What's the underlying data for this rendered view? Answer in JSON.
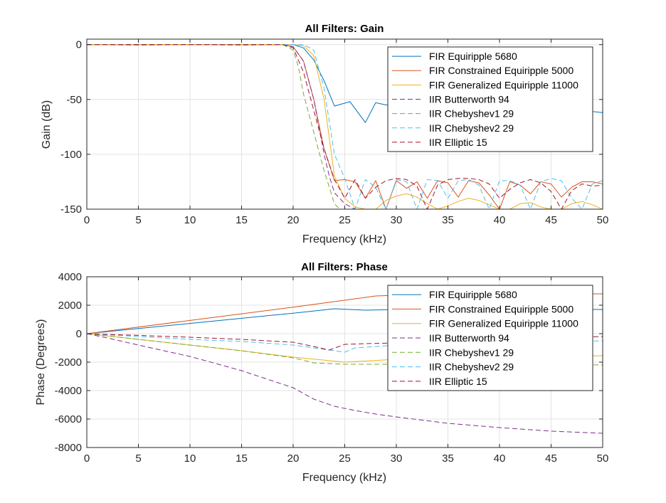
{
  "figure": {
    "background": "#ffffff",
    "axes_color": "#262626",
    "grid_color": "#e3e3e3"
  },
  "chart_data": [
    {
      "type": "line",
      "title": "All Filters: Gain",
      "xlabel": "Frequency (kHz)",
      "ylabel": "Gain (dB)",
      "xlim": [
        0,
        50
      ],
      "ylim": [
        -150,
        5
      ],
      "xticks": [
        0,
        5,
        10,
        15,
        20,
        25,
        30,
        35,
        40,
        45,
        50
      ],
      "yticks": [
        0,
        -50,
        -100,
        -150
      ],
      "grid": true,
      "legend_position": "top-right",
      "series": [
        {
          "name": "FIR Equiripple 5680",
          "color": "#0072BD",
          "dash": "solid",
          "x": [
            0,
            5,
            10,
            15,
            18,
            20,
            21,
            22,
            23,
            24,
            25.5,
            27,
            28,
            29,
            30,
            31,
            32,
            33,
            34,
            35,
            36,
            37,
            38,
            39,
            40,
            41,
            42,
            43,
            44,
            45,
            46,
            47,
            48,
            49,
            50
          ],
          "y": [
            0,
            0,
            0,
            0,
            0,
            0,
            -3,
            -14,
            -33,
            -56,
            -52,
            -71,
            -53,
            -55,
            -56,
            -57,
            -58,
            -60,
            -63,
            -55,
            -58,
            -60,
            -56,
            -59,
            -61,
            -57,
            -60,
            -58,
            -62,
            -59,
            -56,
            -58,
            -60,
            -61,
            -62
          ]
        },
        {
          "name": "FIR Constrained Equiripple 5000",
          "color": "#D95319",
          "dash": "solid",
          "x": [
            0,
            5,
            10,
            15,
            19,
            20,
            21,
            22,
            23,
            24,
            25,
            26,
            27,
            28,
            29,
            30,
            31,
            32,
            33,
            34,
            35,
            36,
            37,
            38,
            39,
            40,
            41,
            42,
            43,
            44,
            45,
            46,
            47,
            48,
            49,
            50
          ],
          "y": [
            0,
            0,
            0,
            0,
            0,
            -2,
            -15,
            -50,
            -95,
            -124,
            -123,
            -125,
            -140,
            -124,
            -150,
            -124,
            -131,
            -125,
            -140,
            -124,
            -126,
            -139,
            -124,
            -126,
            -137,
            -150,
            -125,
            -128,
            -136,
            -125,
            -127,
            -139,
            -130,
            -125,
            -125,
            -127
          ]
        },
        {
          "name": "FIR Generalized Equiripple 11000",
          "color": "#EDB120",
          "dash": "solid",
          "x": [
            0,
            5,
            10,
            15,
            20,
            21,
            22,
            23,
            24,
            25,
            26,
            27,
            28,
            29,
            30,
            31,
            32,
            33,
            34,
            35,
            36,
            37,
            38,
            39,
            40,
            41,
            42,
            43,
            44,
            45,
            46,
            47,
            48,
            49,
            50
          ],
          "y": [
            0,
            0,
            0,
            0,
            0,
            -1,
            -10,
            -50,
            -120,
            -140,
            -148,
            -150,
            -150,
            -142,
            -138,
            -136,
            -139,
            -145,
            -150,
            -147,
            -143,
            -140,
            -142,
            -146,
            -150,
            -150,
            -145,
            -144,
            -148,
            -150,
            -150,
            -145,
            -143,
            -146,
            -150
          ]
        },
        {
          "name": "IIR Butterworth 94",
          "color": "#7E2F8E",
          "dash": "dash",
          "x": [
            0,
            5,
            10,
            15,
            19,
            20,
            21,
            22,
            23,
            23.5,
            24,
            25,
            26
          ],
          "y": [
            0,
            0,
            0,
            0,
            0,
            -2,
            -15,
            -50,
            -100,
            -120,
            -135,
            -145,
            -150
          ]
        },
        {
          "name": "IIR Chebyshev1 29",
          "color": "#77AC30",
          "dash": "dash",
          "x": [
            0,
            5,
            10,
            15,
            19,
            20,
            20.5,
            21,
            22,
            23,
            23.5,
            24,
            24.5
          ],
          "y": [
            0,
            -0.5,
            0,
            -0.5,
            0,
            -5,
            -20,
            -45,
            -80,
            -115,
            -130,
            -145,
            -150
          ]
        },
        {
          "name": "IIR Chebyshev2 29",
          "color": "#4DBEEE",
          "dash": "dash",
          "x": [
            0,
            5,
            10,
            15,
            20,
            21,
            22,
            23,
            24,
            25,
            26,
            27,
            28,
            29,
            30,
            31,
            32,
            33,
            34,
            35,
            36,
            37,
            38,
            39,
            40,
            41,
            42,
            43,
            44,
            45,
            46,
            47,
            48,
            49,
            50
          ],
          "y": [
            0,
            0,
            0,
            0,
            0,
            0,
            -5,
            -40,
            -100,
            -122,
            -150,
            -123,
            -130,
            -150,
            -123,
            -125,
            -150,
            -123,
            -124,
            -140,
            -124,
            -123,
            -128,
            -150,
            -124,
            -124,
            -128,
            -150,
            -125,
            -122,
            -124,
            -140,
            -150,
            -127,
            -124
          ]
        },
        {
          "name": "IIR Elliptic 15",
          "color": "#A2142F",
          "dash": "dash",
          "x": [
            0,
            5,
            10,
            15,
            19,
            20,
            21,
            22,
            23,
            24,
            25,
            26,
            27,
            28,
            29,
            30,
            31,
            32,
            33,
            34,
            35,
            36,
            37,
            38,
            39,
            40,
            41,
            42,
            43,
            44,
            45,
            46,
            47,
            48,
            49,
            50
          ],
          "y": [
            0,
            0,
            0,
            0,
            0,
            -3,
            -25,
            -60,
            -95,
            -123,
            -140,
            -123,
            -140,
            -130,
            -124,
            -122,
            -123,
            -129,
            -150,
            -128,
            -123,
            -122,
            -122,
            -123,
            -127,
            -140,
            -132,
            -126,
            -123,
            -126,
            -134,
            -150,
            -133,
            -127,
            -129,
            -128
          ]
        }
      ]
    },
    {
      "type": "line",
      "title": "All Filters: Phase",
      "xlabel": "Frequency (kHz)",
      "ylabel": "Phase (Degrees)",
      "xlim": [
        0,
        50
      ],
      "ylim": [
        -8000,
        4000
      ],
      "xticks": [
        0,
        5,
        10,
        15,
        20,
        25,
        30,
        35,
        40,
        45,
        50
      ],
      "yticks": [
        4000,
        2000,
        0,
        -2000,
        -4000,
        -6000,
        -8000
      ],
      "grid": true,
      "legend_position": "top-right",
      "series": [
        {
          "name": "FIR Equiripple 5680",
          "color": "#0072BD",
          "dash": "solid",
          "x": [
            0,
            5,
            10,
            15,
            20,
            24,
            27,
            30,
            35,
            40,
            45,
            50
          ],
          "y": [
            0,
            360,
            720,
            1080,
            1440,
            1750,
            1650,
            1700,
            1720,
            1700,
            1710,
            1700
          ]
        },
        {
          "name": "FIR Constrained Equiripple 5000",
          "color": "#D95319",
          "dash": "solid",
          "x": [
            0,
            10,
            20,
            28,
            30,
            35,
            40,
            45,
            50
          ],
          "y": [
            0,
            930,
            1860,
            2650,
            2700,
            2750,
            2800,
            2800,
            2800
          ]
        },
        {
          "name": "FIR Generalized Equiripple 11000",
          "color": "#EDB120",
          "dash": "solid",
          "x": [
            0,
            5,
            10,
            15,
            20,
            25,
            30,
            35,
            40,
            45,
            50
          ],
          "y": [
            0,
            -400,
            -800,
            -1200,
            -1650,
            -2000,
            -1800,
            -1700,
            -1650,
            -1600,
            -1550
          ]
        },
        {
          "name": "IIR Butterworth 94",
          "color": "#7E2F8E",
          "dash": "dash",
          "x": [
            0,
            2,
            5,
            10,
            15,
            20,
            22,
            24,
            26,
            28,
            30,
            35,
            40,
            45,
            50
          ],
          "y": [
            0,
            -300,
            -800,
            -1600,
            -2600,
            -3800,
            -4600,
            -5100,
            -5400,
            -5650,
            -5850,
            -6300,
            -6600,
            -6850,
            -7000
          ]
        },
        {
          "name": "IIR Chebyshev1 29",
          "color": "#77AC30",
          "dash": "dash",
          "x": [
            0,
            5,
            10,
            15,
            20,
            22,
            25,
            30,
            35,
            40,
            45,
            50
          ],
          "y": [
            0,
            -400,
            -800,
            -1200,
            -1700,
            -2050,
            -2150,
            -2150,
            -2150,
            -2150,
            -2150,
            -2200
          ]
        },
        {
          "name": "IIR Chebyshev2 29",
          "color": "#4DBEEE",
          "dash": "dash",
          "x": [
            0,
            5,
            10,
            15,
            20,
            22,
            25,
            26,
            28,
            30,
            35,
            40,
            45,
            50
          ],
          "y": [
            0,
            -200,
            -400,
            -550,
            -800,
            -1000,
            -1300,
            -1000,
            -900,
            -800,
            -700,
            -650,
            -600,
            -500
          ]
        },
        {
          "name": "IIR Elliptic 15",
          "color": "#A2142F",
          "dash": "dash",
          "x": [
            0,
            5,
            10,
            15,
            20,
            22,
            23.5,
            25,
            27,
            30,
            35,
            40,
            45,
            50
          ],
          "y": [
            0,
            -120,
            -250,
            -400,
            -600,
            -900,
            -1150,
            -750,
            -700,
            -650,
            -550,
            -400,
            -300,
            -200
          ]
        }
      ]
    }
  ]
}
